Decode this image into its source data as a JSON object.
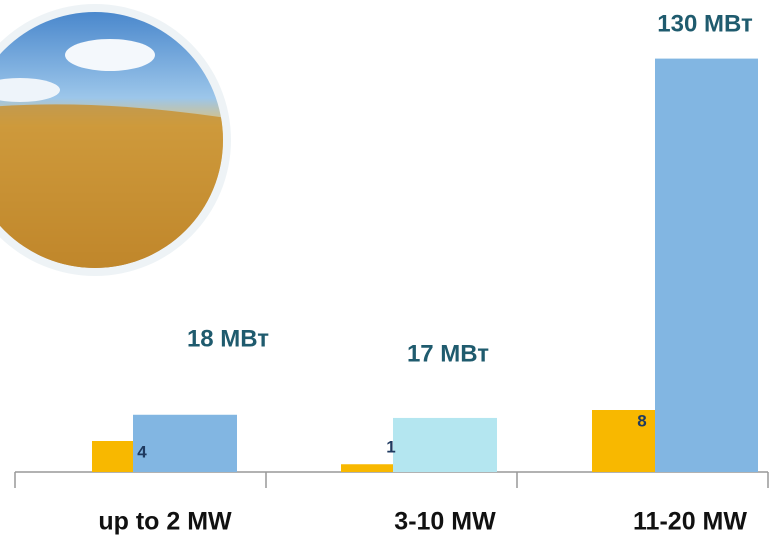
{
  "chart_data": {
    "type": "bar",
    "categories": [
      "up to 2 MW",
      "3-10 MW",
      "11-20 MW"
    ],
    "series": [
      {
        "colors": [
          "#f8b800",
          "#f8b800",
          "#f8b800"
        ],
        "values": [
          4,
          1,
          8
        ]
      },
      {
        "colors": [
          "#82b6e2",
          "#b4e6f0",
          "#82b6e2"
        ],
        "values": [
          18,
          17,
          130
        ],
        "value_labels": [
          "18 МВт",
          "17 МВт",
          "130 МВт"
        ]
      }
    ]
  }
}
